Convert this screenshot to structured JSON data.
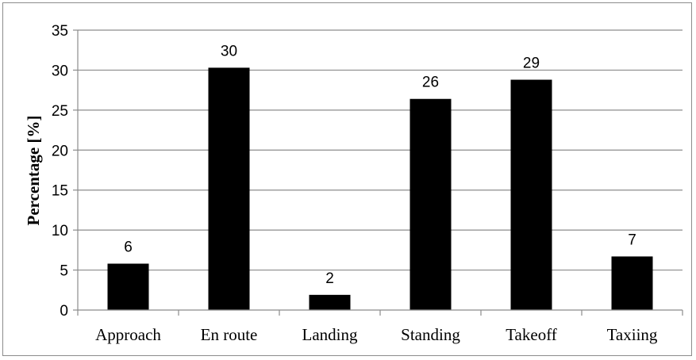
{
  "chart_data": {
    "type": "bar",
    "title": "",
    "xlabel": "",
    "ylabel": "Percentage [%]",
    "categories": [
      "Approach",
      "En route",
      "Landing",
      "Standing",
      "Takeoff",
      "Taxiing"
    ],
    "values": [
      5.8,
      30.3,
      1.9,
      26.4,
      28.8,
      6.7
    ],
    "data_labels": [
      "6",
      "30",
      "2",
      "26",
      "29",
      "7"
    ],
    "ylim": [
      0,
      35
    ],
    "yticks": [
      0,
      5,
      10,
      15,
      20,
      25,
      30,
      35
    ],
    "grid": "horizontal",
    "legend": "none",
    "bar_color": "#000000",
    "grid_color": "#8c8c8c"
  }
}
